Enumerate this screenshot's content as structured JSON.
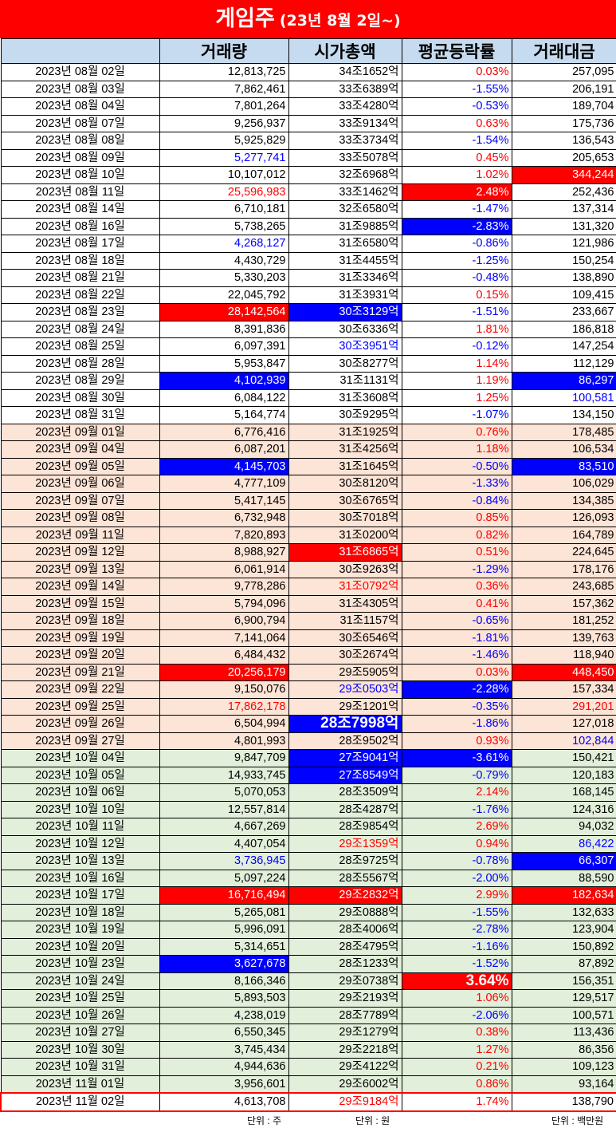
{
  "title": {
    "main": "게임주",
    "sub": "(23년 8월 2일~)"
  },
  "headers": [
    "",
    "거래량",
    "시가총액",
    "평균등락률",
    "거래대금"
  ],
  "rows": [
    {
      "date": "2023년 08월 02일",
      "vol": "12,813,725",
      "cap": "34조1652억",
      "chg": "0.03%",
      "amt": "257,095",
      "m": 8
    },
    {
      "date": "2023년 08월 03일",
      "vol": "7,862,461",
      "cap": "33조6389억",
      "chg": "-1.55%",
      "amt": "206,191",
      "m": 8
    },
    {
      "date": "2023년 08월 04일",
      "vol": "7,801,264",
      "cap": "33조4280억",
      "chg": "-0.53%",
      "amt": "189,704",
      "m": 8
    },
    {
      "date": "2023년 08월 07일",
      "vol": "9,256,937",
      "cap": "33조9134억",
      "chg": "0.63%",
      "amt": "175,736",
      "m": 8
    },
    {
      "date": "2023년 08월 08일",
      "vol": "5,925,829",
      "cap": "33조3734억",
      "chg": "-1.54%",
      "amt": "136,543",
      "m": 8
    },
    {
      "date": "2023년 08월 09일",
      "vol": "5,277,741",
      "cap": "33조5078억",
      "chg": "0.45%",
      "amt": "205,653",
      "m": 8,
      "vs": "blue"
    },
    {
      "date": "2023년 08월 10일",
      "vol": "10,107,012",
      "cap": "32조6968억",
      "chg": "1.02%",
      "amt": "344,244",
      "m": 8,
      "as": "hr"
    },
    {
      "date": "2023년 08월 11일",
      "vol": "25,596,983",
      "cap": "33조1462억",
      "chg": "2.48%",
      "amt": "252,436",
      "m": 8,
      "vs": "red",
      "cs": "hr"
    },
    {
      "date": "2023년 08월 14일",
      "vol": "6,710,181",
      "cap": "32조6580억",
      "chg": "-1.47%",
      "amt": "137,314",
      "m": 8
    },
    {
      "date": "2023년 08월 16일",
      "vol": "5,738,265",
      "cap": "31조9885억",
      "chg": "-2.83%",
      "amt": "131,320",
      "m": 8,
      "cs": "hb"
    },
    {
      "date": "2023년 08월 17일",
      "vol": "4,268,127",
      "cap": "31조6580억",
      "chg": "-0.86%",
      "amt": "121,986",
      "m": 8,
      "vs": "blue"
    },
    {
      "date": "2023년 08월 18일",
      "vol": "4,430,729",
      "cap": "31조4455억",
      "chg": "-1.25%",
      "amt": "150,254",
      "m": 8
    },
    {
      "date": "2023년 08월 21일",
      "vol": "5,330,203",
      "cap": "31조3346억",
      "chg": "-0.48%",
      "amt": "138,890",
      "m": 8
    },
    {
      "date": "2023년 08월 22일",
      "vol": "22,045,792",
      "cap": "31조3931억",
      "chg": "0.15%",
      "amt": "109,415",
      "m": 8
    },
    {
      "date": "2023년 08월 23일",
      "vol": "28,142,564",
      "cap": "30조3129억",
      "chg": "-1.51%",
      "amt": "233,667",
      "m": 8,
      "vs": "hr",
      "ks": "hb"
    },
    {
      "date": "2023년 08월 24일",
      "vol": "8,391,836",
      "cap": "30조6336억",
      "chg": "1.81%",
      "amt": "186,818",
      "m": 8
    },
    {
      "date": "2023년 08월 25일",
      "vol": "6,097,391",
      "cap": "30조3951억",
      "chg": "-0.12%",
      "amt": "147,254",
      "m": 8,
      "ks": "blue"
    },
    {
      "date": "2023년 08월 28일",
      "vol": "5,953,847",
      "cap": "30조8277억",
      "chg": "1.14%",
      "amt": "112,129",
      "m": 8
    },
    {
      "date": "2023년 08월 29일",
      "vol": "4,102,939",
      "cap": "31조1131억",
      "chg": "1.19%",
      "amt": "86,297",
      "m": 8,
      "vs": "hb",
      "as": "hb"
    },
    {
      "date": "2023년 08월 30일",
      "vol": "6,084,122",
      "cap": "31조3608억",
      "chg": "1.25%",
      "amt": "100,581",
      "m": 8,
      "as": "blue"
    },
    {
      "date": "2023년 08월 31일",
      "vol": "5,164,774",
      "cap": "30조9295억",
      "chg": "-1.07%",
      "amt": "134,150",
      "m": 8
    },
    {
      "date": "2023년 09월 01일",
      "vol": "6,776,416",
      "cap": "31조1925억",
      "chg": "0.76%",
      "amt": "178,485",
      "m": 9
    },
    {
      "date": "2023년 09월 04일",
      "vol": "6,087,201",
      "cap": "31조4256억",
      "chg": "1.18%",
      "amt": "106,534",
      "m": 9
    },
    {
      "date": "2023년 09월 05일",
      "vol": "4,145,703",
      "cap": "31조1645억",
      "chg": "-0.50%",
      "amt": "83,510",
      "m": 9,
      "vs": "hb",
      "as": "hb"
    },
    {
      "date": "2023년 09월 06일",
      "vol": "4,777,109",
      "cap": "30조8120억",
      "chg": "-1.33%",
      "amt": "106,029",
      "m": 9
    },
    {
      "date": "2023년 09월 07일",
      "vol": "5,417,145",
      "cap": "30조6765억",
      "chg": "-0.84%",
      "amt": "134,385",
      "m": 9
    },
    {
      "date": "2023년 09월 08일",
      "vol": "6,732,948",
      "cap": "30조7018억",
      "chg": "0.85%",
      "amt": "126,093",
      "m": 9
    },
    {
      "date": "2023년 09월 11일",
      "vol": "7,820,893",
      "cap": "31조0200억",
      "chg": "0.82%",
      "amt": "164,789",
      "m": 9
    },
    {
      "date": "2023년 09월 12일",
      "vol": "8,988,927",
      "cap": "31조6865억",
      "chg": "0.51%",
      "amt": "224,645",
      "m": 9,
      "ks": "hr"
    },
    {
      "date": "2023년 09월 13일",
      "vol": "6,061,914",
      "cap": "30조9263억",
      "chg": "-1.29%",
      "amt": "178,176",
      "m": 9
    },
    {
      "date": "2023년 09월 14일",
      "vol": "9,778,286",
      "cap": "31조0792억",
      "chg": "0.36%",
      "amt": "243,685",
      "m": 9,
      "ks": "red"
    },
    {
      "date": "2023년 09월 15일",
      "vol": "5,794,096",
      "cap": "31조4305억",
      "chg": "0.41%",
      "amt": "157,362",
      "m": 9
    },
    {
      "date": "2023년 09월 18일",
      "vol": "6,900,794",
      "cap": "31조1157억",
      "chg": "-0.65%",
      "amt": "181,252",
      "m": 9
    },
    {
      "date": "2023년 09월 19일",
      "vol": "7,141,064",
      "cap": "30조6546억",
      "chg": "-1.81%",
      "amt": "139,763",
      "m": 9
    },
    {
      "date": "2023년 09월 20일",
      "vol": "6,484,432",
      "cap": "30조2674억",
      "chg": "-1.46%",
      "amt": "118,940",
      "m": 9
    },
    {
      "date": "2023년 09월 21일",
      "vol": "20,256,179",
      "cap": "29조5905억",
      "chg": "0.03%",
      "amt": "448,450",
      "m": 9,
      "vs": "hr",
      "as": "hr"
    },
    {
      "date": "2023년 09월 22일",
      "vol": "9,150,076",
      "cap": "29조0503억",
      "chg": "-2.28%",
      "amt": "157,334",
      "m": 9,
      "ks": "blue",
      "cs": "hb"
    },
    {
      "date": "2023년 09월 25일",
      "vol": "17,862,178",
      "cap": "29조1201억",
      "chg": "-0.35%",
      "amt": "291,201",
      "m": 9,
      "vs": "red",
      "as": "red"
    },
    {
      "date": "2023년 09월 26일",
      "vol": "6,504,994",
      "cap": "28조7998억",
      "chg": "-1.86%",
      "amt": "127,018",
      "m": 9,
      "ks": "hbbig"
    },
    {
      "date": "2023년 09월 27일",
      "vol": "4,801,993",
      "cap": "28조9502억",
      "chg": "0.93%",
      "amt": "102,844",
      "m": 9,
      "as": "blue"
    },
    {
      "date": "2023년 10월 04일",
      "vol": "9,847,709",
      "cap": "27조9041억",
      "chg": "-3.61%",
      "amt": "150,421",
      "m": 10,
      "ks": "hb",
      "cs": "hb"
    },
    {
      "date": "2023년 10월 05일",
      "vol": "14,933,745",
      "cap": "27조8549억",
      "chg": "-0.79%",
      "amt": "120,183",
      "m": 10,
      "ks": "hb"
    },
    {
      "date": "2023년 10월 06일",
      "vol": "5,070,053",
      "cap": "28조3509억",
      "chg": "2.14%",
      "amt": "168,145",
      "m": 10
    },
    {
      "date": "2023년 10월 10일",
      "vol": "12,557,814",
      "cap": "28조4287억",
      "chg": "-1.76%",
      "amt": "124,316",
      "m": 10
    },
    {
      "date": "2023년 10월 11일",
      "vol": "4,667,269",
      "cap": "28조9854억",
      "chg": "2.69%",
      "amt": "94,032",
      "m": 10
    },
    {
      "date": "2023년 10월 12일",
      "vol": "4,407,054",
      "cap": "29조1359억",
      "chg": "0.94%",
      "amt": "86,422",
      "m": 10,
      "ks": "red",
      "as": "blue"
    },
    {
      "date": "2023년 10월 13일",
      "vol": "3,736,945",
      "cap": "28조9725억",
      "chg": "-0.78%",
      "amt": "66,307",
      "m": 10,
      "vs": "blue",
      "as": "hb"
    },
    {
      "date": "2023년 10월 16일",
      "vol": "5,097,224",
      "cap": "28조5567억",
      "chg": "-2.00%",
      "amt": "88,590",
      "m": 10
    },
    {
      "date": "2023년 10월 17일",
      "vol": "16,716,494",
      "cap": "29조2832억",
      "chg": "2.99%",
      "amt": "182,634",
      "m": 10,
      "vs": "hr",
      "ks": "hr",
      "as": "hr"
    },
    {
      "date": "2023년 10월 18일",
      "vol": "5,265,081",
      "cap": "29조0888억",
      "chg": "-1.55%",
      "amt": "132,633",
      "m": 10
    },
    {
      "date": "2023년 10월 19일",
      "vol": "5,996,091",
      "cap": "28조4006억",
      "chg": "-2.78%",
      "amt": "123,904",
      "m": 10
    },
    {
      "date": "2023년 10월 20일",
      "vol": "5,314,651",
      "cap": "28조4795억",
      "chg": "-1.16%",
      "amt": "150,892",
      "m": 10
    },
    {
      "date": "2023년 10월 23일",
      "vol": "3,627,678",
      "cap": "28조1233억",
      "chg": "-1.52%",
      "amt": "87,892",
      "m": 10,
      "vs": "hb"
    },
    {
      "date": "2023년 10월 24일",
      "vol": "8,166,346",
      "cap": "29조0738억",
      "chg": "3.64%",
      "amt": "156,351",
      "m": 10,
      "cs": "hrbig"
    },
    {
      "date": "2023년 10월 25일",
      "vol": "5,893,503",
      "cap": "29조2193억",
      "chg": "1.06%",
      "amt": "129,517",
      "m": 10
    },
    {
      "date": "2023년 10월 26일",
      "vol": "4,238,019",
      "cap": "28조7789억",
      "chg": "-2.06%",
      "amt": "100,571",
      "m": 10
    },
    {
      "date": "2023년 10월 27일",
      "vol": "6,550,345",
      "cap": "29조1279억",
      "chg": "0.38%",
      "amt": "113,436",
      "m": 10
    },
    {
      "date": "2023년 10월 30일",
      "vol": "3,745,434",
      "cap": "29조2218억",
      "chg": "1.27%",
      "amt": "86,356",
      "m": 10
    },
    {
      "date": "2023년 10월 31일",
      "vol": "4,944,636",
      "cap": "29조4122억",
      "chg": "0.21%",
      "amt": "109,123",
      "m": 10
    },
    {
      "date": "2023년 11월 01일",
      "vol": "3,956,601",
      "cap": "29조6002억",
      "chg": "0.86%",
      "amt": "93,164",
      "m": 10
    },
    {
      "date": "2023년 11월 02일",
      "vol": "4,613,708",
      "cap": "29조9184억",
      "chg": "1.74%",
      "amt": "138,790",
      "m": 8,
      "ks": "red",
      "last": true
    }
  ],
  "units": {
    "volume": "단위 : 주",
    "cap": "단위 : 원",
    "amount": "단위 : 백만원"
  },
  "colors": {
    "title_bg": "#ff0000",
    "header_bg": "#c6dbef",
    "aug_bg": "#ffffff",
    "sep_bg": "#fce4d6",
    "oct_bg": "#e2efda",
    "up": "#ff0000",
    "down": "#0000ff"
  }
}
